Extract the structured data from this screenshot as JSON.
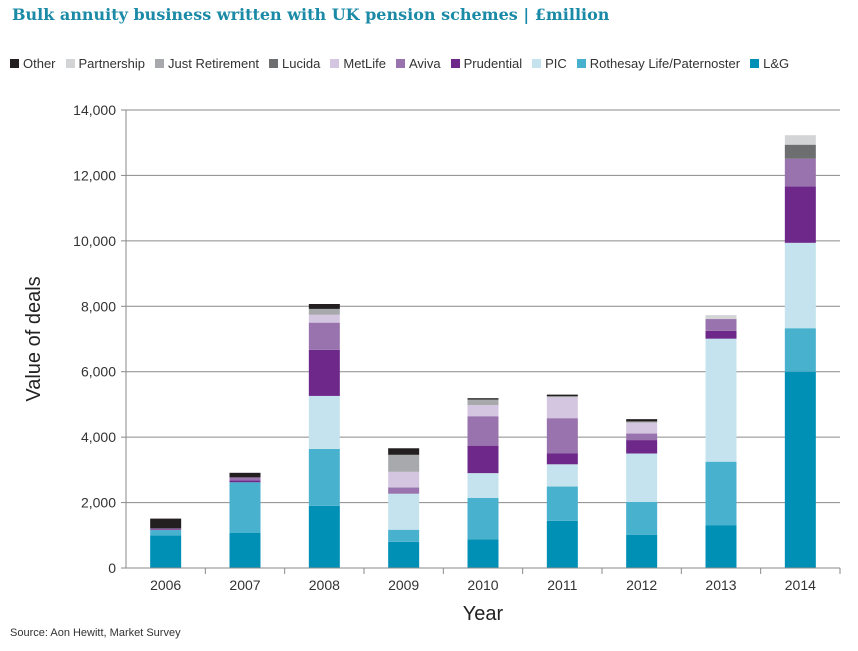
{
  "title": "Bulk annuity business written with UK pension schemes | £million",
  "source": "Source: Aon Hewitt, Market Survey",
  "chart_data": {
    "type": "bar",
    "stacked": true,
    "title": "Bulk annuity business written with UK pension schemes | £million",
    "xlabel": "Year",
    "ylabel": "Value of deals",
    "ylim": [
      0,
      14000
    ],
    "yticks": [
      0,
      2000,
      4000,
      6000,
      8000,
      10000,
      12000,
      14000
    ],
    "ytick_labels": [
      "0",
      "2,000",
      "4,000",
      "6,000",
      "8,000",
      "10,000",
      "12,000",
      "14,000"
    ],
    "grid": "horizontal",
    "legend": "top",
    "legend_order": [
      "Other",
      "Partnership",
      "Just Retirement",
      "Lucida",
      "MetLife",
      "Aviva",
      "Prudential",
      "PIC",
      "Rothesay Life/Paternoster",
      "L&G"
    ],
    "categories": [
      "2006",
      "2007",
      "2008",
      "2009",
      "2010",
      "2011",
      "2012",
      "2013",
      "2014"
    ],
    "series": [
      {
        "name": "L&G",
        "color": "#0090b5",
        "values": [
          1000,
          1080,
          1900,
          800,
          870,
          1440,
          1010,
          1310,
          6000
        ]
      },
      {
        "name": "Rothesay Life/Paternoster",
        "color": "#48b2ce",
        "values": [
          160,
          1540,
          1740,
          370,
          1270,
          1050,
          1010,
          1940,
          1330
        ]
      },
      {
        "name": "PIC",
        "color": "#c5e3ee",
        "values": [
          0,
          0,
          1620,
          1100,
          760,
          680,
          1480,
          3760,
          2610
        ]
      },
      {
        "name": "Prudential",
        "color": "#6e2889",
        "values": [
          20,
          60,
          1410,
          0,
          840,
          330,
          410,
          240,
          1720
        ]
      },
      {
        "name": "Aviva",
        "color": "#9873ad",
        "values": [
          30,
          90,
          830,
          190,
          900,
          1080,
          200,
          360,
          850
        ]
      },
      {
        "name": "MetLife",
        "color": "#d4c6e1",
        "values": [
          0,
          0,
          240,
          480,
          340,
          640,
          330,
          0,
          0
        ]
      },
      {
        "name": "Lucida",
        "color": "#6d6e70",
        "values": [
          0,
          0,
          0,
          0,
          0,
          0,
          0,
          0,
          430
        ]
      },
      {
        "name": "Just Retirement",
        "color": "#a7a9ac",
        "values": [
          0,
          0,
          180,
          520,
          170,
          30,
          40,
          0,
          0
        ]
      },
      {
        "name": "Partnership",
        "color": "#d3d4d6",
        "values": [
          0,
          0,
          0,
          0,
          0,
          0,
          0,
          120,
          290
        ]
      },
      {
        "name": "Other",
        "color": "#231f20",
        "values": [
          300,
          140,
          150,
          200,
          40,
          50,
          70,
          0,
          0
        ]
      }
    ]
  }
}
